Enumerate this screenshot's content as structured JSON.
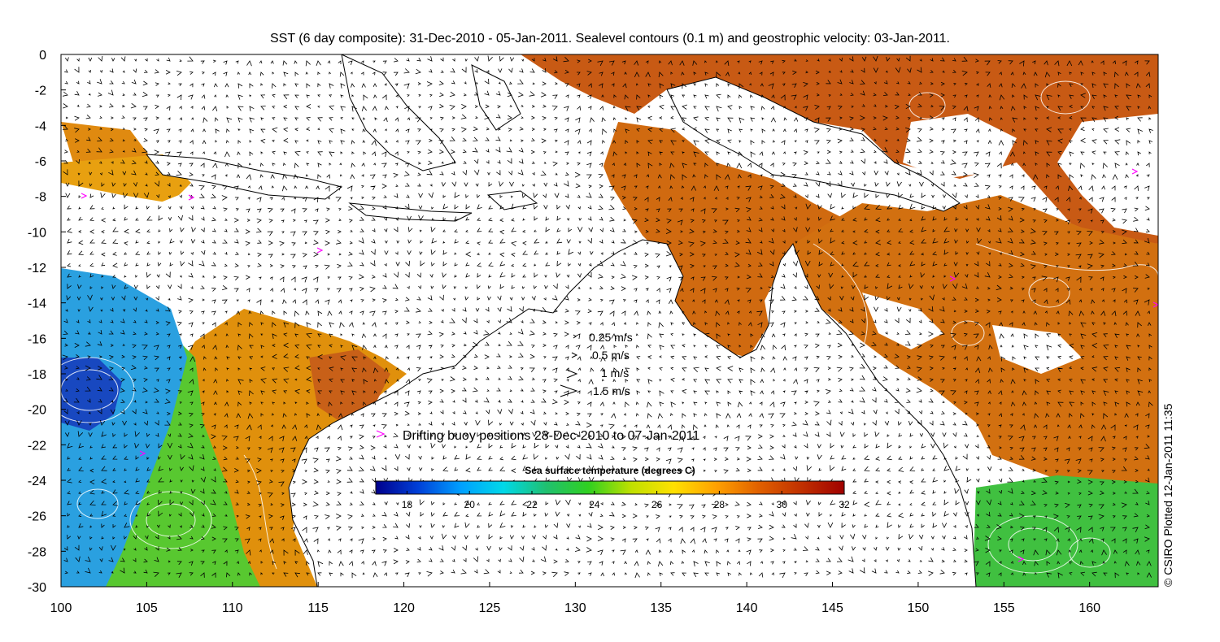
{
  "title": "SST (6 day composite): 31-Dec-2010 - 05-Jan-2011. Sealevel contours (0.1 m) and geostrophic velocity: 03-Jan-2011.",
  "credit": "© CSIRO Plotted 12-Jan-2011 11:35",
  "map": {
    "projection": "lon-lat (plate carree)",
    "lon_range": [
      100,
      164
    ],
    "lat_range": [
      -30,
      0
    ],
    "x_ticks": [
      "100",
      "105",
      "110",
      "115",
      "120",
      "125",
      "130",
      "135",
      "140",
      "145",
      "150",
      "155",
      "160"
    ],
    "y_ticks": [
      "0",
      "-2",
      "-4",
      "-6",
      "-8",
      "-10",
      "-12",
      "-14",
      "-16",
      "-18",
      "-20",
      "-22",
      "-24",
      "-26",
      "-28",
      "-30"
    ],
    "colors": {
      "land": "#ffffff",
      "cloud_gap": "#ffffff",
      "coastline": "#000000",
      "contours": "#ffffff",
      "arrows": "#000000",
      "buoy": "#ff00ff"
    }
  },
  "velocity_legend": {
    "entries": [
      {
        "label": "0.25 m/s",
        "value_ms": 0.25
      },
      {
        "label": "0.5 m/s",
        "value_ms": 0.5
      },
      {
        "label": "1 m/s",
        "value_ms": 1
      },
      {
        "label": "1.5 m/s",
        "value_ms": 1.5
      }
    ]
  },
  "buoy_legend": {
    "label": "Drifting buoy positions 28-Dec-2010 to 07-Jan-2011",
    "icon": "chevron-right-icon"
  },
  "colorbar": {
    "title": "Sea surface temperature (degrees C)",
    "range": [
      17,
      32
    ],
    "ticks": [
      "18",
      "20",
      "22",
      "24",
      "26",
      "28",
      "30",
      "32"
    ],
    "stops": [
      "#00008c",
      "#0040d8",
      "#00a0ff",
      "#00d8e8",
      "#20c070",
      "#30d020",
      "#c0e000",
      "#ffe000",
      "#ffa000",
      "#e06000",
      "#c03000",
      "#a00000"
    ]
  }
}
